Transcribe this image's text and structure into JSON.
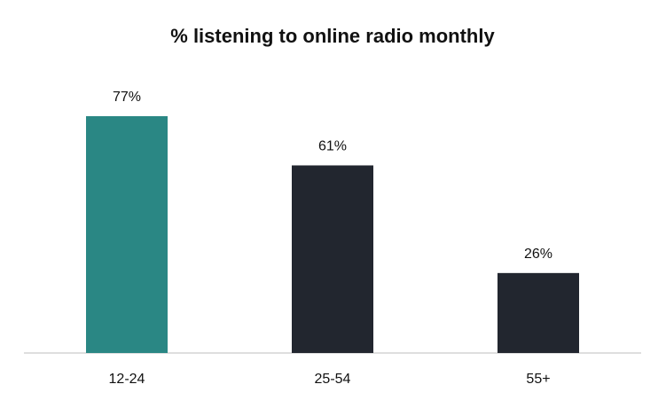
{
  "chart_data": {
    "type": "bar",
    "title": "% listening to online radio monthly",
    "categories": [
      "12-24",
      "25-54",
      "55+"
    ],
    "values": [
      77,
      61,
      26
    ],
    "value_labels": [
      "77%",
      "61%",
      "26%"
    ],
    "colors": [
      "#2a8784",
      "#22262f",
      "#22262f"
    ]
  }
}
